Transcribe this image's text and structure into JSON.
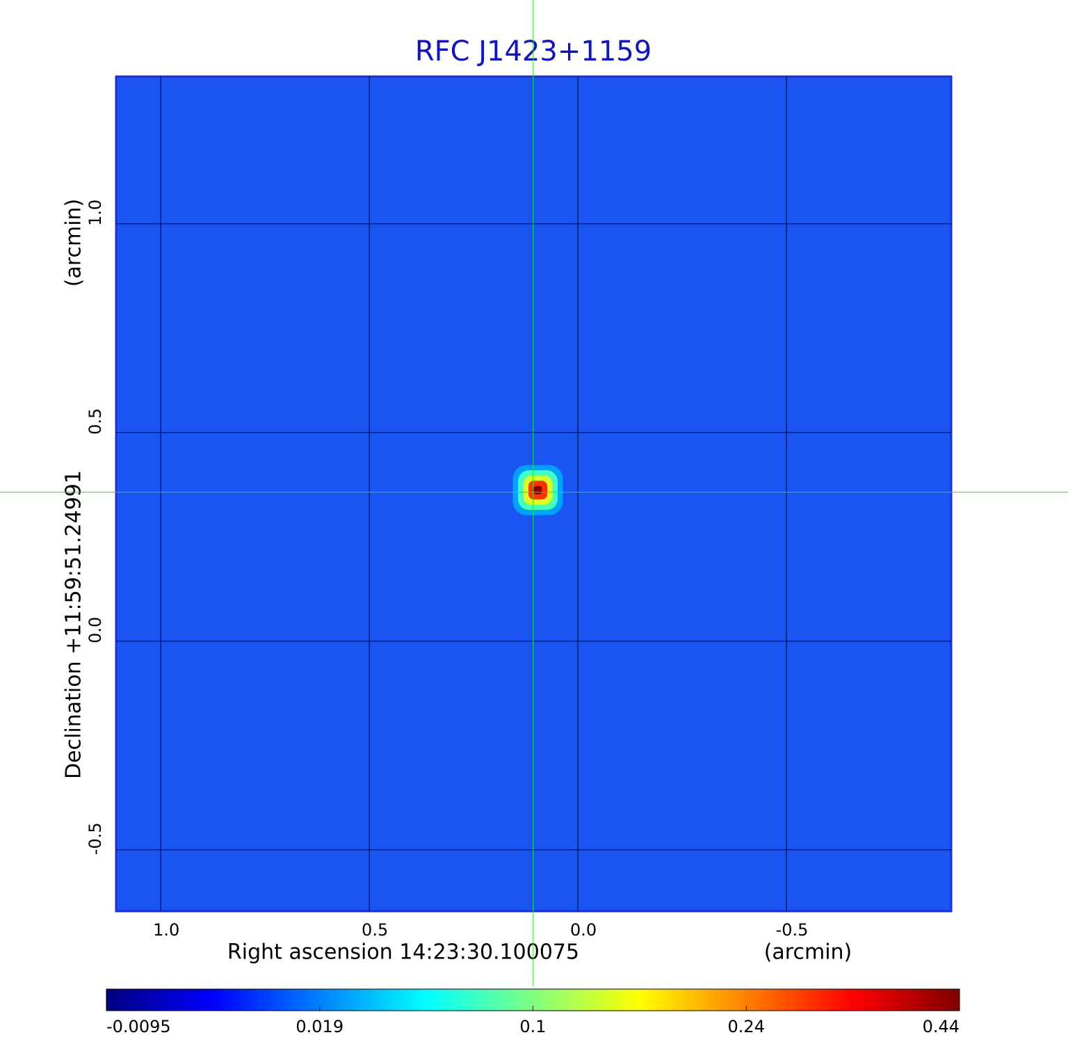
{
  "chart_data": {
    "type": "image",
    "title": "RFC J1423+1159",
    "x_label": "Right ascension  14:23:30.100075",
    "x_unit": "(arcmin)",
    "y_label": "Declination  +11:59:51.24991",
    "y_unit": "(arcmin)",
    "xlim": [
      1.107,
      -0.895
    ],
    "ylim": [
      -0.647,
      1.353
    ],
    "xticks": [
      {
        "value": 1,
        "label": "1.0"
      },
      0.5,
      {
        "value": 0,
        "label": "0.0"
      },
      -0.5
    ],
    "yticks": [
      {
        "value": 1,
        "label": "1.0"
      },
      0.5,
      {
        "value": 0,
        "label": "0.0"
      },
      -0.5
    ],
    "grid": true,
    "crosshair": {
      "x": 0.107,
      "y": 0.357,
      "color": "#00ff00"
    },
    "source": {
      "x": 0.096,
      "y": 0.362,
      "levels": [
        0.03,
        0.08,
        0.15,
        0.3,
        0.44
      ]
    },
    "colorbar": {
      "ticks": [
        -0.0095,
        0.019,
        0.1,
        0.24,
        0.44
      ],
      "colors": [
        "#00007f",
        "#0000ff",
        "#0080ff",
        "#00ffff",
        "#80ff80",
        "#ffff00",
        "#ff8000",
        "#ff0000",
        "#7f0000"
      ]
    }
  }
}
